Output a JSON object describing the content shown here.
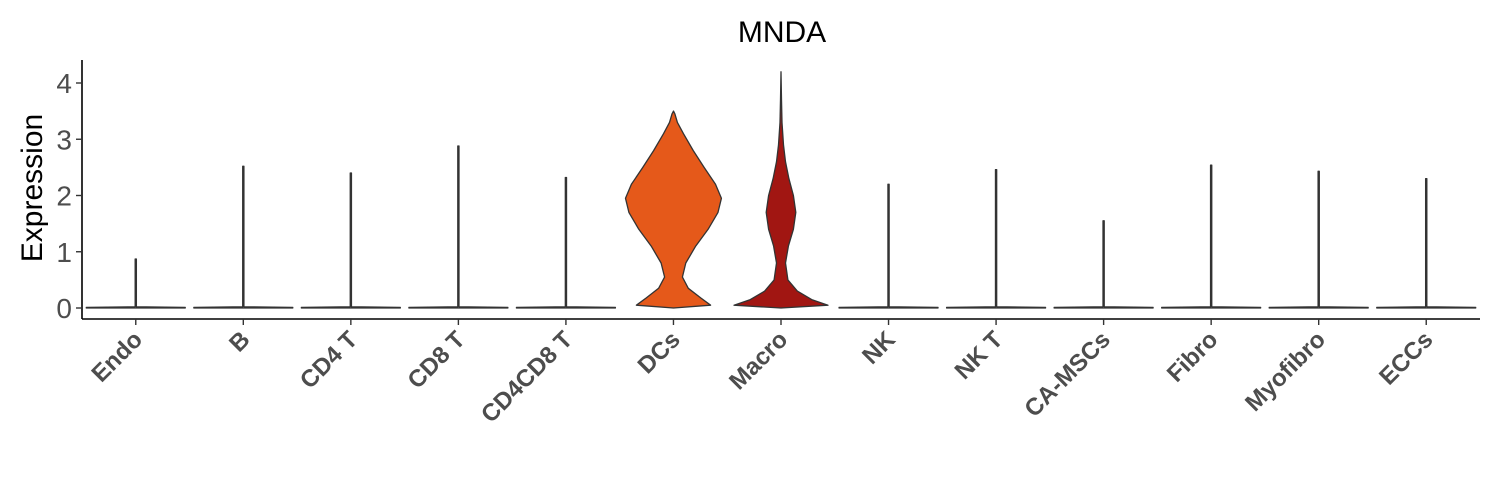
{
  "chart_data": {
    "type": "violin",
    "title": "MNDA",
    "ylabel": "Expression",
    "xlabel": "",
    "ylim": [
      -0.2,
      4.4
    ],
    "yticks": [
      0,
      1,
      2,
      3,
      4
    ],
    "legend": "none",
    "grid": false,
    "categories": [
      "Endo",
      "B",
      "CD4 T",
      "CD8 T",
      "CD4CD8 T",
      "DCs",
      "Macro",
      "NK",
      "NK T",
      "CA-MSCs",
      "Fibro",
      "Myofibro",
      "ECCs"
    ],
    "series": [
      {
        "category": "Endo",
        "max": 0.87,
        "fill": "#ffffff"
      },
      {
        "category": "B",
        "max": 2.52,
        "fill": "#ffffff"
      },
      {
        "category": "CD4 T",
        "max": 2.4,
        "fill": "#ffffff"
      },
      {
        "category": "CD8 T",
        "max": 2.88,
        "fill": "#ffffff"
      },
      {
        "category": "CD4CD8 T",
        "max": 2.32,
        "fill": "#ffffff"
      },
      {
        "category": "DCs",
        "max": 3.5,
        "fill": "#e5591a",
        "profile": [
          [
            0,
            0.0
          ],
          [
            0.05,
            0.75
          ],
          [
            0.18,
            0.55
          ],
          [
            0.35,
            0.3
          ],
          [
            0.55,
            0.18
          ],
          [
            0.8,
            0.25
          ],
          [
            1.1,
            0.45
          ],
          [
            1.4,
            0.7
          ],
          [
            1.7,
            0.9
          ],
          [
            1.95,
            0.97
          ],
          [
            2.2,
            0.85
          ],
          [
            2.5,
            0.62
          ],
          [
            2.8,
            0.4
          ],
          [
            3.1,
            0.2
          ],
          [
            3.3,
            0.08
          ],
          [
            3.45,
            0.03
          ],
          [
            3.5,
            0.0
          ]
        ]
      },
      {
        "category": "Macro",
        "max": 4.2,
        "fill": "#a11612",
        "profile": [
          [
            0,
            0.0
          ],
          [
            0.05,
            0.95
          ],
          [
            0.15,
            0.62
          ],
          [
            0.3,
            0.33
          ],
          [
            0.5,
            0.14
          ],
          [
            0.8,
            0.09
          ],
          [
            1.1,
            0.15
          ],
          [
            1.4,
            0.25
          ],
          [
            1.7,
            0.3
          ],
          [
            2.0,
            0.25
          ],
          [
            2.3,
            0.16
          ],
          [
            2.6,
            0.09
          ],
          [
            2.9,
            0.05
          ],
          [
            3.3,
            0.02
          ],
          [
            3.7,
            0.01
          ],
          [
            4.2,
            0.0
          ]
        ]
      },
      {
        "category": "NK",
        "max": 2.2,
        "fill": "#ffffff"
      },
      {
        "category": "NK T",
        "max": 2.46,
        "fill": "#ffffff"
      },
      {
        "category": "CA-MSCs",
        "max": 1.55,
        "fill": "#ffffff"
      },
      {
        "category": "Fibro",
        "max": 2.54,
        "fill": "#ffffff"
      },
      {
        "category": "Myofibro",
        "max": 2.43,
        "fill": "#ffffff"
      },
      {
        "category": "ECCs",
        "max": 2.3,
        "fill": "#ffffff"
      }
    ]
  }
}
